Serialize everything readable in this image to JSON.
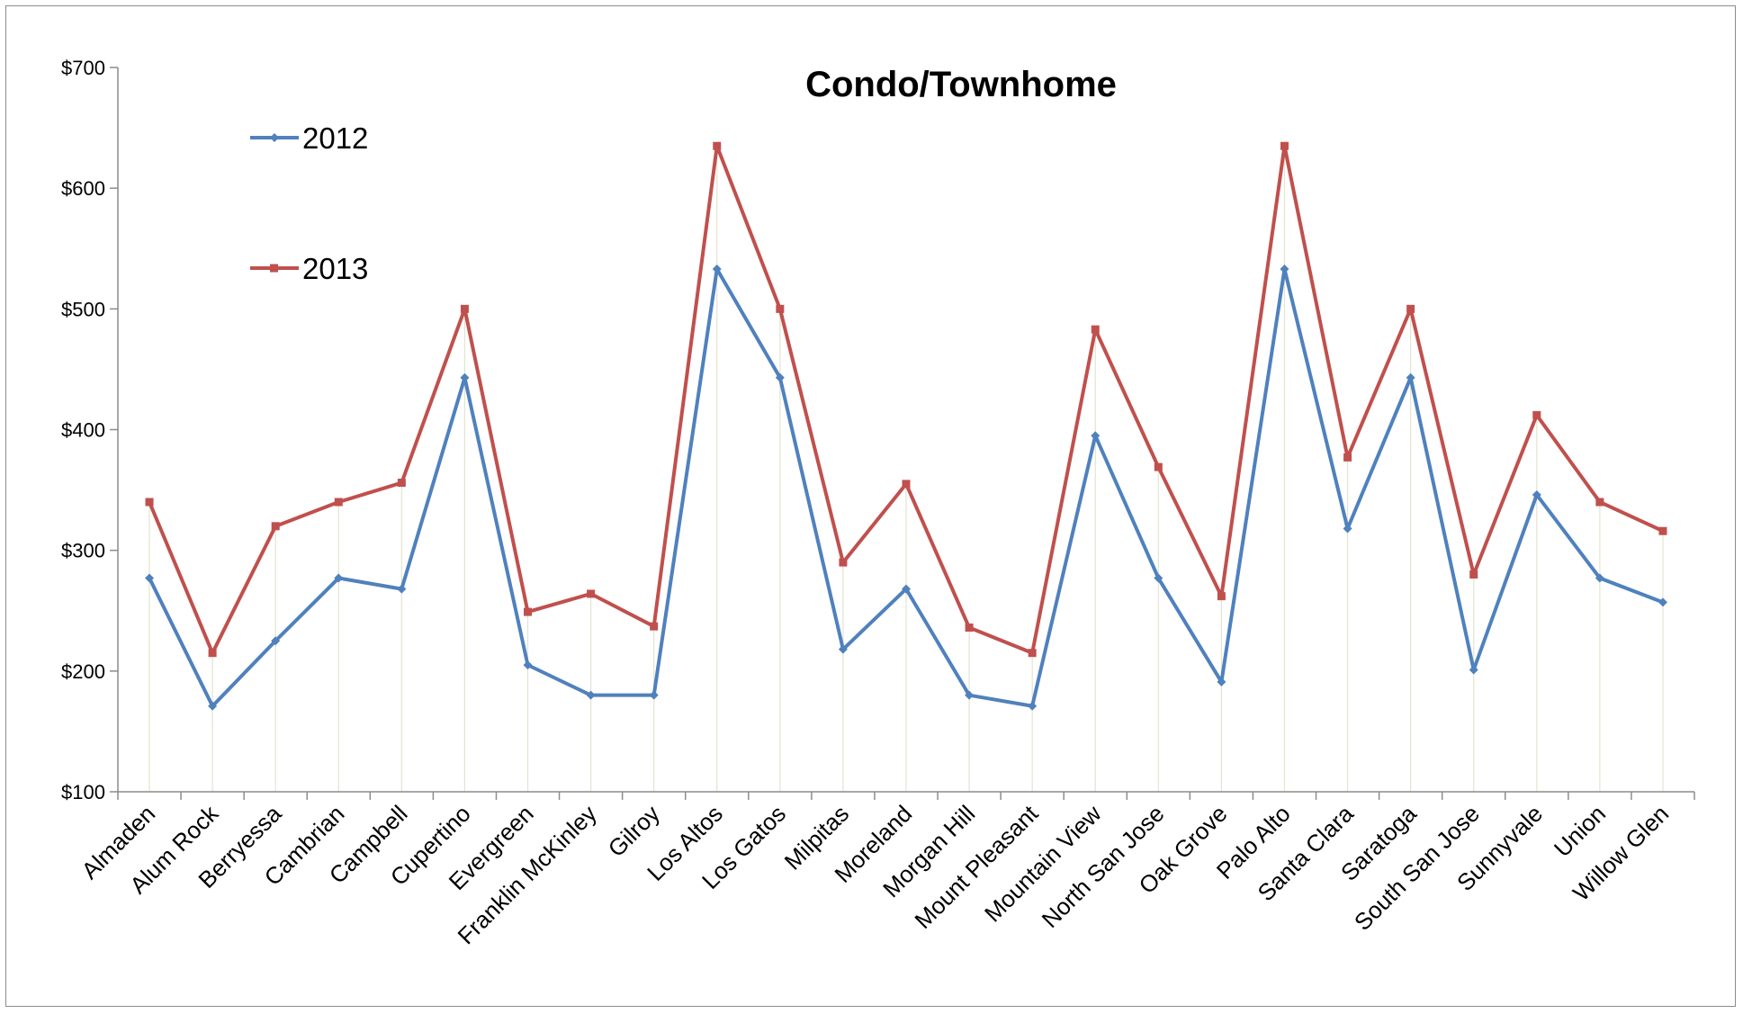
{
  "chart_data": {
    "type": "line",
    "title": "Condo/Townhome",
    "xlabel": "",
    "ylabel": "",
    "ylim": [
      100,
      700
    ],
    "yticks": [
      100,
      200,
      300,
      400,
      500,
      600,
      700
    ],
    "ytick_labels": [
      "$100",
      "$200",
      "$300",
      "$400",
      "$500",
      "$600",
      "$700"
    ],
    "grid": "vertical drop lines at each category",
    "legend_position": "top-left",
    "categories": [
      "Almaden",
      "Alum Rock",
      "Berryessa",
      "Cambrian",
      "Campbell",
      "Cupertino",
      "Evergreen",
      "Franklin McKinley",
      "Gilroy",
      "Los Altos",
      "Los Gatos",
      "Milpitas",
      "Moreland",
      "Morgan Hill",
      "Mount Pleasant",
      "Mountain View",
      "North San Jose",
      "Oak Grove",
      "Palo Alto",
      "Santa Clara",
      "Saratoga",
      "South San Jose",
      "Sunnyvale",
      "Union",
      "Willow Glen"
    ],
    "series": [
      {
        "name": "2012",
        "color": "#4f81bd",
        "marker": "diamond",
        "values": [
          277,
          171,
          225,
          277,
          268,
          443,
          205,
          180,
          180,
          533,
          443,
          218,
          268,
          180,
          171,
          395,
          277,
          191,
          533,
          318,
          443,
          201,
          346,
          277,
          257
        ]
      },
      {
        "name": "2013",
        "color": "#c0504d",
        "marker": "square",
        "values": [
          340,
          215,
          320,
          340,
          356,
          500,
          249,
          264,
          237,
          635,
          500,
          290,
          355,
          236,
          215,
          483,
          369,
          262,
          635,
          377,
          500,
          280,
          412,
          340,
          316
        ]
      }
    ]
  }
}
